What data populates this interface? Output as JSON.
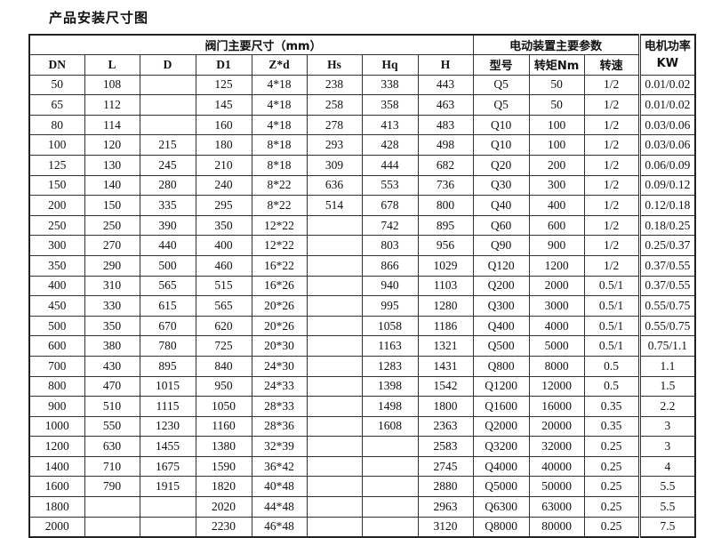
{
  "title": "产品安装尺寸图",
  "header": {
    "group_valve": "阀门主要尺寸（mm）",
    "group_actuator": "电动装置主要参数",
    "power": "电机功率KW",
    "columns": [
      "DN",
      "L",
      "D",
      "D1",
      "Z*d",
      "Hs",
      "Hq",
      "H",
      "型号",
      "转矩Nm",
      "转速"
    ]
  },
  "rows": [
    [
      "50",
      "108",
      "",
      "125",
      "4*18",
      "238",
      "338",
      "443",
      "Q5",
      "50",
      "1/2",
      "0.01/0.02"
    ],
    [
      "65",
      "112",
      "",
      "145",
      "4*18",
      "258",
      "358",
      "463",
      "Q5",
      "50",
      "1/2",
      "0.01/0.02"
    ],
    [
      "80",
      "114",
      "",
      "160",
      "4*18",
      "278",
      "413",
      "483",
      "Q10",
      "100",
      "1/2",
      "0.03/0.06"
    ],
    [
      "100",
      "120",
      "215",
      "180",
      "8*18",
      "293",
      "428",
      "498",
      "Q10",
      "100",
      "1/2",
      "0.03/0.06"
    ],
    [
      "125",
      "130",
      "245",
      "210",
      "8*18",
      "309",
      "444",
      "682",
      "Q20",
      "200",
      "1/2",
      "0.06/0.09"
    ],
    [
      "150",
      "140",
      "280",
      "240",
      "8*22",
      "636",
      "553",
      "736",
      "Q30",
      "300",
      "1/2",
      "0.09/0.12"
    ],
    [
      "200",
      "150",
      "335",
      "295",
      "8*22",
      "514",
      "678",
      "800",
      "Q40",
      "400",
      "1/2",
      "0.12/0.18"
    ],
    [
      "250",
      "250",
      "390",
      "350",
      "12*22",
      "",
      "742",
      "895",
      "Q60",
      "600",
      "1/2",
      "0.18/0.25"
    ],
    [
      "300",
      "270",
      "440",
      "400",
      "12*22",
      "",
      "803",
      "956",
      "Q90",
      "900",
      "1/2",
      "0.25/0.37"
    ],
    [
      "350",
      "290",
      "500",
      "460",
      "16*22",
      "",
      "866",
      "1029",
      "Q120",
      "1200",
      "1/2",
      "0.37/0.55"
    ],
    [
      "400",
      "310",
      "565",
      "515",
      "16*26",
      "",
      "940",
      "1103",
      "Q200",
      "2000",
      "0.5/1",
      "0.37/0.55"
    ],
    [
      "450",
      "330",
      "615",
      "565",
      "20*26",
      "",
      "995",
      "1280",
      "Q300",
      "3000",
      "0.5/1",
      "0.55/0.75"
    ],
    [
      "500",
      "350",
      "670",
      "620",
      "20*26",
      "",
      "1058",
      "1186",
      "Q400",
      "4000",
      "0.5/1",
      "0.55/0.75"
    ],
    [
      "600",
      "380",
      "780",
      "725",
      "20*30",
      "",
      "1163",
      "1321",
      "Q500",
      "5000",
      "0.5/1",
      "0.75/1.1"
    ],
    [
      "700",
      "430",
      "895",
      "840",
      "24*30",
      "",
      "1283",
      "1431",
      "Q800",
      "8000",
      "0.5",
      "1.1"
    ],
    [
      "800",
      "470",
      "1015",
      "950",
      "24*33",
      "",
      "1398",
      "1542",
      "Q1200",
      "12000",
      "0.5",
      "1.5"
    ],
    [
      "900",
      "510",
      "1115",
      "1050",
      "28*33",
      "",
      "1498",
      "1800",
      "Q1600",
      "16000",
      "0.35",
      "2.2"
    ],
    [
      "1000",
      "550",
      "1230",
      "1160",
      "28*36",
      "",
      "1608",
      "2363",
      "Q2000",
      "20000",
      "0.35",
      "3"
    ],
    [
      "1200",
      "630",
      "1455",
      "1380",
      "32*39",
      "",
      "",
      "2583",
      "Q3200",
      "32000",
      "0.25",
      "3"
    ],
    [
      "1400",
      "710",
      "1675",
      "1590",
      "36*42",
      "",
      "",
      "2745",
      "Q4000",
      "40000",
      "0.25",
      "4"
    ],
    [
      "1600",
      "790",
      "1915",
      "1820",
      "40*48",
      "",
      "",
      "2880",
      "Q5000",
      "50000",
      "0.25",
      "5.5"
    ],
    [
      "1800",
      "",
      "",
      "2020",
      "44*48",
      "",
      "",
      "2963",
      "Q6300",
      "63000",
      "0.25",
      "5.5"
    ],
    [
      "2000",
      "",
      "",
      "2230",
      "46*48",
      "",
      "",
      "3120",
      "Q8000",
      "80000",
      "0.25",
      "7.5"
    ]
  ]
}
